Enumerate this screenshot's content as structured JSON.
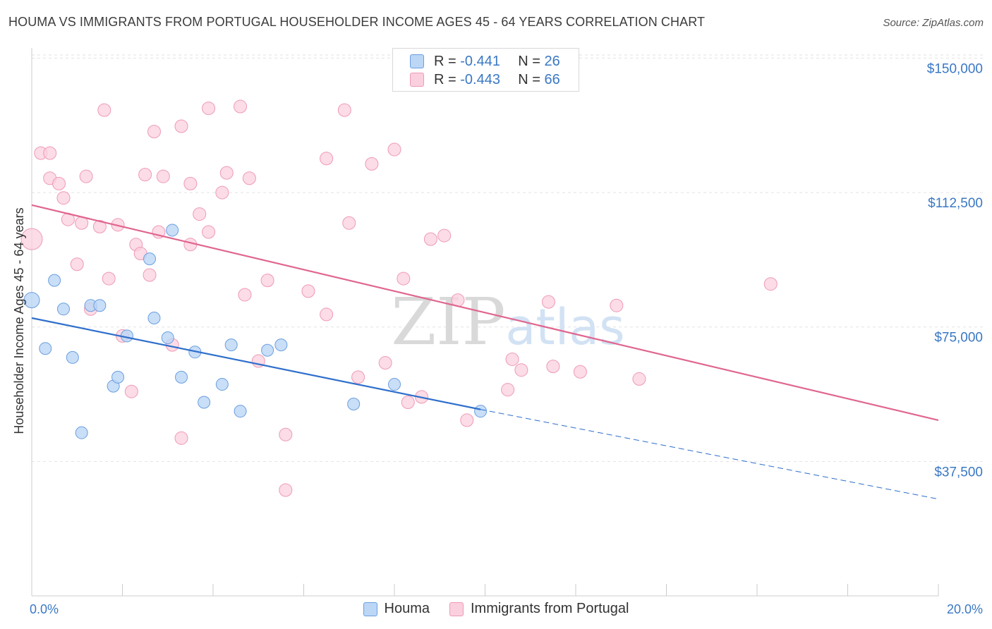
{
  "title": "HOUMA VS IMMIGRANTS FROM PORTUGAL HOUSEHOLDER INCOME AGES 45 - 64 YEARS CORRELATION CHART",
  "source": "Source: ZipAtlas.com",
  "watermark": "ZIPatlas",
  "legend": {
    "series1": {
      "r_label": "R =",
      "r_value": "-0.441",
      "n_label": "N =",
      "n_value": "26"
    },
    "series2": {
      "r_label": "R =",
      "r_value": "-0.443",
      "n_label": "N =",
      "n_value": "66"
    }
  },
  "bottom_legend": {
    "series1": "Houma",
    "series2": "Immigrants from Portugal"
  },
  "colors": {
    "houma_fill": "#bcd6f5",
    "houma_stroke": "#6a9fe0",
    "houma_line": "#2f6fcc",
    "portugal_fill": "#fbd0de",
    "portugal_stroke": "#ee9ab6",
    "portugal_line": "#e0668f",
    "grid": "#e2e2e2",
    "axis_text": "#3a78c4"
  },
  "chart_data": {
    "type": "scatter",
    "title": "HOUMA VS IMMIGRANTS FROM PORTUGAL HOUSEHOLDER INCOME AGES 45 - 64 YEARS CORRELATION CHART",
    "xlabel": "",
    "ylabel": "Householder Income Ages 45 - 64 years",
    "xlim": [
      0,
      20
    ],
    "ylim": [
      0,
      155000
    ],
    "x_tick_labels": [
      "0.0%",
      "20.0%"
    ],
    "y_ticks": [
      37500,
      75000,
      112500,
      150000
    ],
    "y_tick_labels": [
      "$37,500",
      "$75,000",
      "$112,500",
      "$150,000"
    ],
    "series": [
      {
        "name": "Houma",
        "points": [
          [
            0.0,
            82500
          ],
          [
            0.3,
            69000
          ],
          [
            0.5,
            88000
          ],
          [
            0.7,
            80000
          ],
          [
            0.9,
            66500
          ],
          [
            1.1,
            45500
          ],
          [
            1.3,
            81000
          ],
          [
            1.5,
            81000
          ],
          [
            1.8,
            58500
          ],
          [
            1.9,
            61000
          ],
          [
            2.1,
            72500
          ],
          [
            2.6,
            94000
          ],
          [
            2.7,
            77500
          ],
          [
            3.0,
            72000
          ],
          [
            3.1,
            102000
          ],
          [
            3.3,
            61000
          ],
          [
            3.6,
            68000
          ],
          [
            3.8,
            54000
          ],
          [
            4.2,
            59000
          ],
          [
            4.4,
            70000
          ],
          [
            4.6,
            51500
          ],
          [
            5.2,
            68500
          ],
          [
            5.5,
            70000
          ],
          [
            7.1,
            53500
          ],
          [
            8.0,
            59000
          ],
          [
            9.9,
            51500
          ]
        ],
        "trend": {
          "x0": 0.0,
          "y0": 77500,
          "x1": 9.9,
          "y1": 52000,
          "dashed_to_x": 20.0,
          "dashed_to_y": 27000
        }
      },
      {
        "name": "Immigrants from Portugal",
        "points": [
          [
            0.0,
            99500
          ],
          [
            0.2,
            123500
          ],
          [
            0.4,
            123500
          ],
          [
            0.4,
            116500
          ],
          [
            0.6,
            115000
          ],
          [
            0.7,
            111000
          ],
          [
            0.8,
            105000
          ],
          [
            1.0,
            92500
          ],
          [
            1.1,
            104000
          ],
          [
            1.2,
            117000
          ],
          [
            1.3,
            80000
          ],
          [
            1.5,
            103000
          ],
          [
            1.6,
            135500
          ],
          [
            1.7,
            88500
          ],
          [
            1.9,
            103500
          ],
          [
            2.0,
            72500
          ],
          [
            2.2,
            57000
          ],
          [
            2.3,
            98000
          ],
          [
            2.4,
            95500
          ],
          [
            2.5,
            117500
          ],
          [
            2.6,
            89500
          ],
          [
            2.7,
            129500
          ],
          [
            2.8,
            101500
          ],
          [
            2.9,
            117000
          ],
          [
            3.1,
            70000
          ],
          [
            3.3,
            44000
          ],
          [
            3.3,
            131000
          ],
          [
            3.5,
            115000
          ],
          [
            3.5,
            98000
          ],
          [
            3.7,
            106500
          ],
          [
            3.9,
            101500
          ],
          [
            3.9,
            136000
          ],
          [
            4.2,
            112500
          ],
          [
            4.3,
            118000
          ],
          [
            4.6,
            136500
          ],
          [
            4.7,
            84000
          ],
          [
            4.8,
            116500
          ],
          [
            5.0,
            65500
          ],
          [
            5.2,
            88000
          ],
          [
            5.6,
            29500
          ],
          [
            5.6,
            45000
          ],
          [
            6.1,
            85000
          ],
          [
            6.5,
            78500
          ],
          [
            6.5,
            122000
          ],
          [
            6.9,
            135500
          ],
          [
            7.0,
            104000
          ],
          [
            7.2,
            61000
          ],
          [
            7.5,
            120500
          ],
          [
            7.8,
            65000
          ],
          [
            8.0,
            124500
          ],
          [
            8.2,
            88500
          ],
          [
            8.3,
            54000
          ],
          [
            8.6,
            55500
          ],
          [
            8.8,
            99500
          ],
          [
            9.1,
            100500
          ],
          [
            9.4,
            82500
          ],
          [
            9.6,
            49000
          ],
          [
            10.5,
            57500
          ],
          [
            10.6,
            66000
          ],
          [
            10.8,
            63000
          ],
          [
            11.4,
            82000
          ],
          [
            11.5,
            64000
          ],
          [
            12.1,
            62500
          ],
          [
            12.9,
            81000
          ],
          [
            13.4,
            60500
          ],
          [
            16.3,
            87000
          ]
        ],
        "trend": {
          "x0": 0.0,
          "y0": 109000,
          "x1": 20.0,
          "y1": 49000
        }
      }
    ]
  }
}
